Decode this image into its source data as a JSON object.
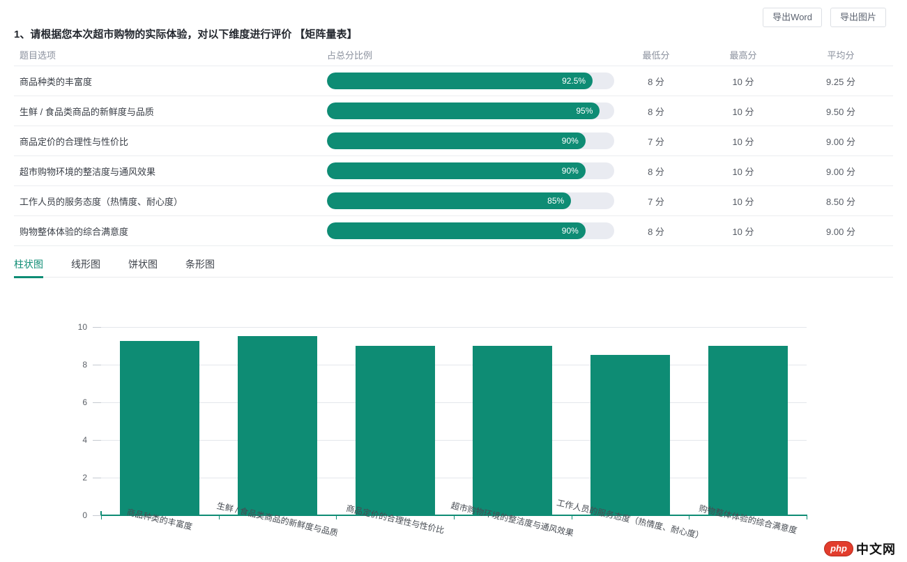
{
  "toolbar": {
    "export_word_label": "导出Word",
    "export_image_label": "导出图片"
  },
  "question": {
    "title": "1、请根据您本次超市购物的实际体验，对以下维度进行评价 【矩阵量表】"
  },
  "table": {
    "headers": {
      "option": "题目选项",
      "proportion": "占总分比例",
      "min": "最低分",
      "max": "最高分",
      "avg": "平均分"
    },
    "rows": [
      {
        "label": "商品种类的丰富度",
        "percent": 92.5,
        "percent_label": "92.5%",
        "min": "8 分",
        "max": "10 分",
        "avg": "9.25 分"
      },
      {
        "label": "生鲜 / 食品类商品的新鲜度与品质",
        "percent": 95,
        "percent_label": "95%",
        "min": "8 分",
        "max": "10 分",
        "avg": "9.50 分"
      },
      {
        "label": "商品定价的合理性与性价比",
        "percent": 90,
        "percent_label": "90%",
        "min": "7 分",
        "max": "10 分",
        "avg": "9.00 分"
      },
      {
        "label": "超市购物环境的整洁度与通风效果",
        "percent": 90,
        "percent_label": "90%",
        "min": "8 分",
        "max": "10 分",
        "avg": "9.00 分"
      },
      {
        "label": "工作人员的服务态度（热情度、耐心度）",
        "percent": 85,
        "percent_label": "85%",
        "min": "7 分",
        "max": "10 分",
        "avg": "8.50 分"
      },
      {
        "label": "购物整体体验的综合满意度",
        "percent": 90,
        "percent_label": "90%",
        "min": "8 分",
        "max": "10 分",
        "avg": "9.00 分"
      }
    ]
  },
  "tabs": [
    {
      "label": "柱状图",
      "active": true
    },
    {
      "label": "线形图",
      "active": false
    },
    {
      "label": "饼状图",
      "active": false
    },
    {
      "label": "条形图",
      "active": false
    }
  ],
  "chart_data": {
    "type": "bar",
    "categories": [
      "商品种类的丰富度",
      "生鲜 / 食品类商品的新鲜度与品质",
      "商品定价的合理性与性价比",
      "超市购物环境的整洁度与通风效果",
      "工作人员的服务态度（热情度、耐心度）",
      "购物整体体验的综合满意度"
    ],
    "values": [
      9.25,
      9.5,
      9,
      9,
      8.5,
      9
    ],
    "title": "",
    "xlabel": "",
    "ylabel": "",
    "ylim": [
      0,
      10
    ],
    "yticks": [
      0,
      2,
      4,
      6,
      8,
      10
    ],
    "grid": true,
    "legend": false,
    "bar_color": "#0E8C74",
    "axis_color": "#0E8C74"
  },
  "watermark": {
    "logo_text": "php",
    "site_text": "中文网"
  },
  "colors": {
    "accent": "#0E8C74",
    "progress_track": "#e9ebf1",
    "watermark_red": "#e23d2d"
  }
}
